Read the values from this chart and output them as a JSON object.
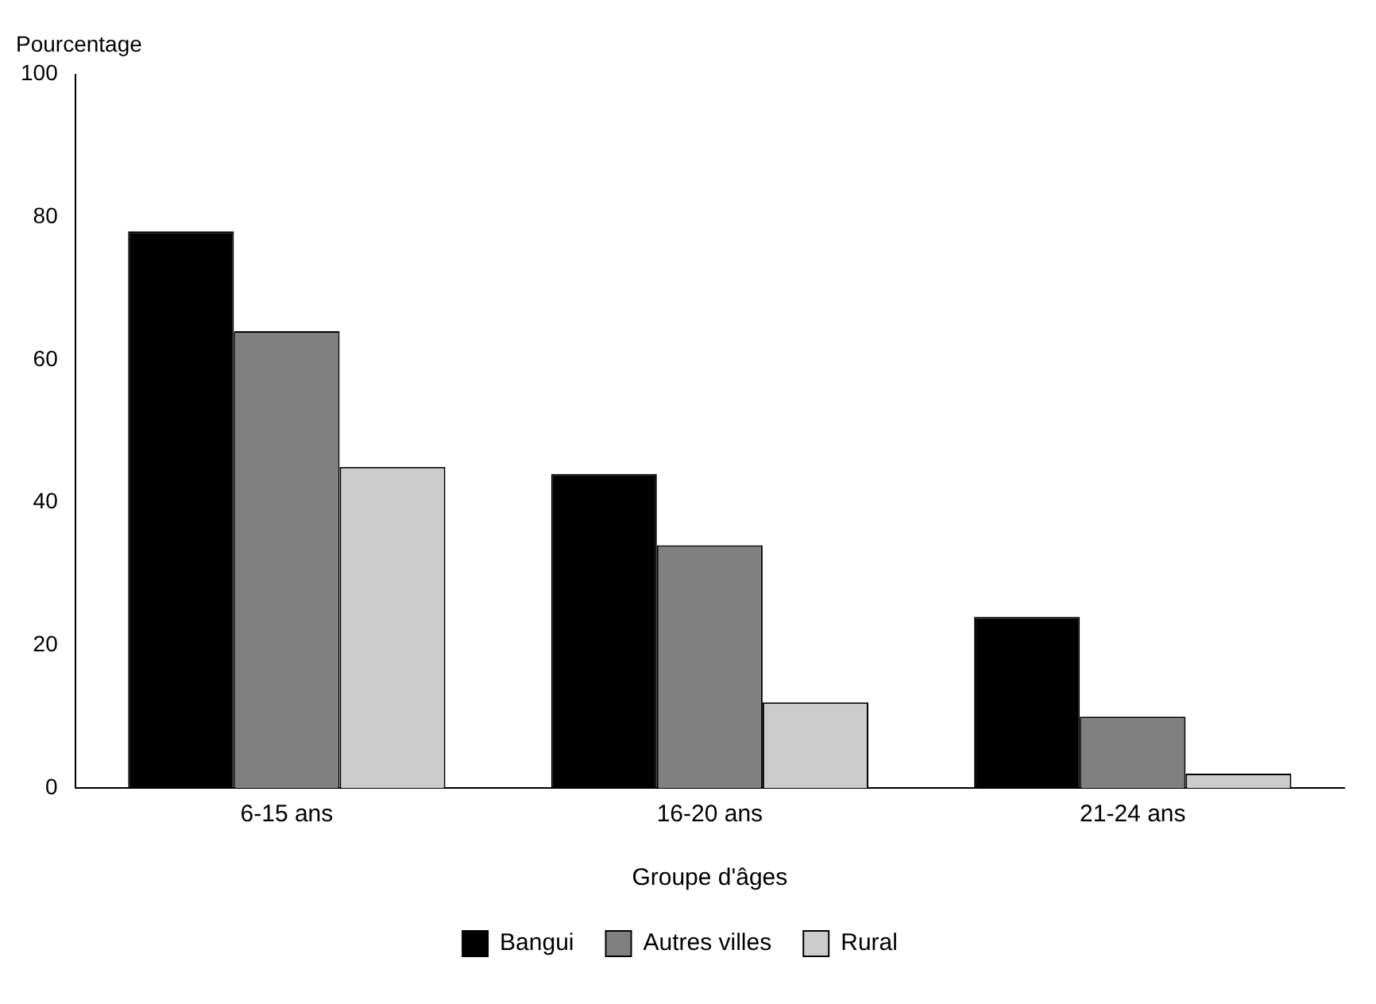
{
  "chart_data": {
    "type": "bar",
    "ylabel": "Pourcentage",
    "xlabel": "Groupe d'âges",
    "categories": [
      "6-15 ans",
      "16-20 ans",
      "21-24 ans"
    ],
    "series": [
      {
        "name": "Bangui",
        "color": "#000000",
        "values": [
          78,
          44,
          24
        ]
      },
      {
        "name": "Autres villes",
        "color": "#808080",
        "values": [
          64,
          34,
          10
        ]
      },
      {
        "name": "Rural",
        "color": "#cccccc",
        "values": [
          45,
          12,
          2
        ]
      }
    ],
    "ylim": [
      0,
      100
    ],
    "yticks": [
      0,
      20,
      40,
      60,
      80,
      100
    ],
    "grid": false,
    "legend": "bottom"
  }
}
